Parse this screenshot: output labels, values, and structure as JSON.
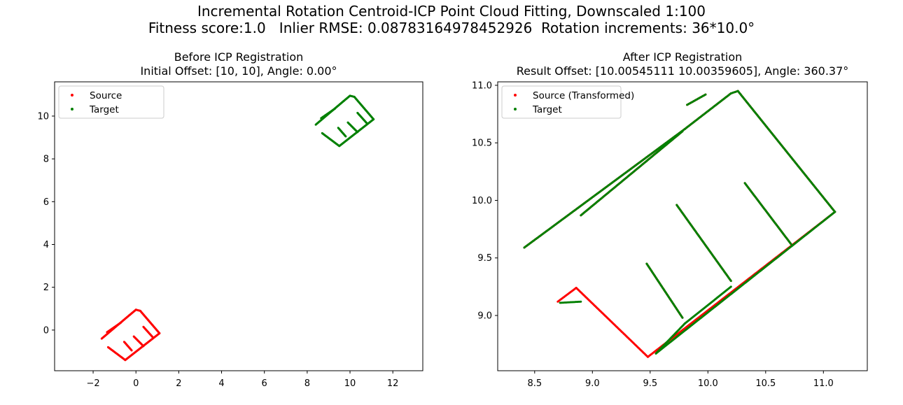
{
  "figure": {
    "suptitle_line1": "Incremental Rotation Centroid-ICP Point Cloud Fitting, Downscaled 1:100",
    "suptitle_line2": "Fitness score:1.0   Inlier RMSE: 0.08783164978452926  Rotation increments: 36*10.0°"
  },
  "colors": {
    "source": "#ff0000",
    "target": "#008000"
  },
  "chart_data": [
    {
      "type": "scatter",
      "title": "Before ICP Registration",
      "subtitle": "Initial Offset: [10, 10], Angle: 0.00°",
      "xlim": [
        -3.8,
        13.4
      ],
      "ylim": [
        -1.9,
        11.6
      ],
      "xticks": [
        -2,
        0,
        2,
        4,
        6,
        8,
        10,
        12
      ],
      "yticks": [
        0,
        2,
        4,
        6,
        8,
        10
      ],
      "xtick_labels": [
        "−2",
        "0",
        "2",
        "4",
        "6",
        "8",
        "10",
        "12"
      ],
      "ytick_labels": [
        "0",
        "2",
        "4",
        "6",
        "8",
        "10"
      ],
      "legend": {
        "placement": "upper-left",
        "entries": [
          "Source",
          "Target"
        ]
      },
      "series": [
        {
          "name": "Source",
          "color": "#ff0000",
          "polylines": [
            [
              [
                -1.6,
                -0.4
              ],
              [
                -0.3,
                0.7
              ],
              [
                0.0,
                0.95
              ],
              [
                0.2,
                0.9
              ],
              [
                1.1,
                -0.15
              ],
              [
                -0.5,
                -1.4
              ],
              [
                -1.3,
                -0.8
              ]
            ],
            [
              [
                -0.55,
                -0.55
              ],
              [
                -0.2,
                -0.95
              ]
            ],
            [
              [
                -0.1,
                -0.3
              ],
              [
                0.35,
                -0.75
              ]
            ],
            [
              [
                0.35,
                0.15
              ],
              [
                0.8,
                -0.35
              ]
            ],
            [
              [
                -1.35,
                -0.1
              ],
              [
                -0.7,
                0.35
              ]
            ]
          ]
        },
        {
          "name": "Target",
          "color": "#008000",
          "polylines": [
            [
              [
                8.4,
                9.6
              ],
              [
                9.7,
                10.7
              ],
              [
                10.0,
                10.95
              ],
              [
                10.2,
                10.9
              ],
              [
                11.1,
                9.85
              ],
              [
                9.5,
                8.6
              ],
              [
                8.7,
                9.2
              ]
            ],
            [
              [
                9.45,
                9.45
              ],
              [
                9.8,
                9.05
              ]
            ],
            [
              [
                9.9,
                9.7
              ],
              [
                10.35,
                9.25
              ]
            ],
            [
              [
                10.35,
                10.15
              ],
              [
                10.8,
                9.65
              ]
            ],
            [
              [
                8.65,
                9.9
              ],
              [
                9.3,
                10.35
              ]
            ]
          ]
        }
      ]
    },
    {
      "type": "scatter",
      "title": "After ICP Registration",
      "subtitle": "Result Offset: [10.00545111 10.00359605], Angle: 360.37°",
      "xlim": [
        8.18,
        11.38
      ],
      "ylim": [
        8.52,
        11.03
      ],
      "xticks": [
        8.5,
        9.0,
        9.5,
        10.0,
        10.5,
        11.0
      ],
      "yticks": [
        9.0,
        9.5,
        10.0,
        10.5,
        11.0
      ],
      "xtick_labels": [
        "8.5",
        "9.0",
        "9.5",
        "10.0",
        "10.5",
        "11.0"
      ],
      "ytick_labels": [
        "9.0",
        "9.5",
        "10.0",
        "10.5",
        "11.0"
      ],
      "legend": {
        "placement": "upper-left",
        "entries": [
          "Source (Transformed)",
          "Target"
        ]
      },
      "series": [
        {
          "name": "Source (Transformed)",
          "color": "#ff0000",
          "polylines": [
            [
              [
                8.41,
                9.59
              ],
              [
                9.8,
                10.62
              ],
              [
                10.2,
                10.93
              ],
              [
                10.26,
                10.95
              ],
              [
                11.1,
                9.9
              ],
              [
                9.48,
                8.64
              ],
              [
                8.86,
                9.24
              ],
              [
                8.7,
                9.12
              ]
            ],
            [
              [
                8.9,
                9.87
              ],
              [
                9.78,
                10.6
              ]
            ],
            [
              [
                9.47,
                9.45
              ],
              [
                9.78,
                8.98
              ]
            ],
            [
              [
                9.73,
                9.96
              ],
              [
                10.2,
                9.3
              ]
            ],
            [
              [
                10.32,
                10.15
              ],
              [
                10.72,
                9.62
              ]
            ],
            [
              [
                9.82,
                10.83
              ],
              [
                9.98,
                10.92
              ]
            ]
          ]
        },
        {
          "name": "Target",
          "color": "#008000",
          "polylines": [
            [
              [
                8.41,
                9.59
              ],
              [
                9.8,
                10.62
              ],
              [
                10.2,
                10.93
              ],
              [
                10.26,
                10.95
              ],
              [
                11.1,
                9.9
              ],
              [
                9.55,
                8.67
              ],
              [
                9.8,
                8.93
              ],
              [
                10.2,
                9.25
              ]
            ],
            [
              [
                8.72,
                9.11
              ],
              [
                8.9,
                9.12
              ]
            ],
            [
              [
                8.9,
                9.87
              ],
              [
                9.78,
                10.6
              ]
            ],
            [
              [
                9.47,
                9.45
              ],
              [
                9.78,
                8.98
              ]
            ],
            [
              [
                9.73,
                9.96
              ],
              [
                10.2,
                9.3
              ]
            ],
            [
              [
                10.32,
                10.15
              ],
              [
                10.72,
                9.62
              ]
            ],
            [
              [
                9.82,
                10.83
              ],
              [
                9.98,
                10.92
              ]
            ]
          ]
        }
      ]
    }
  ]
}
